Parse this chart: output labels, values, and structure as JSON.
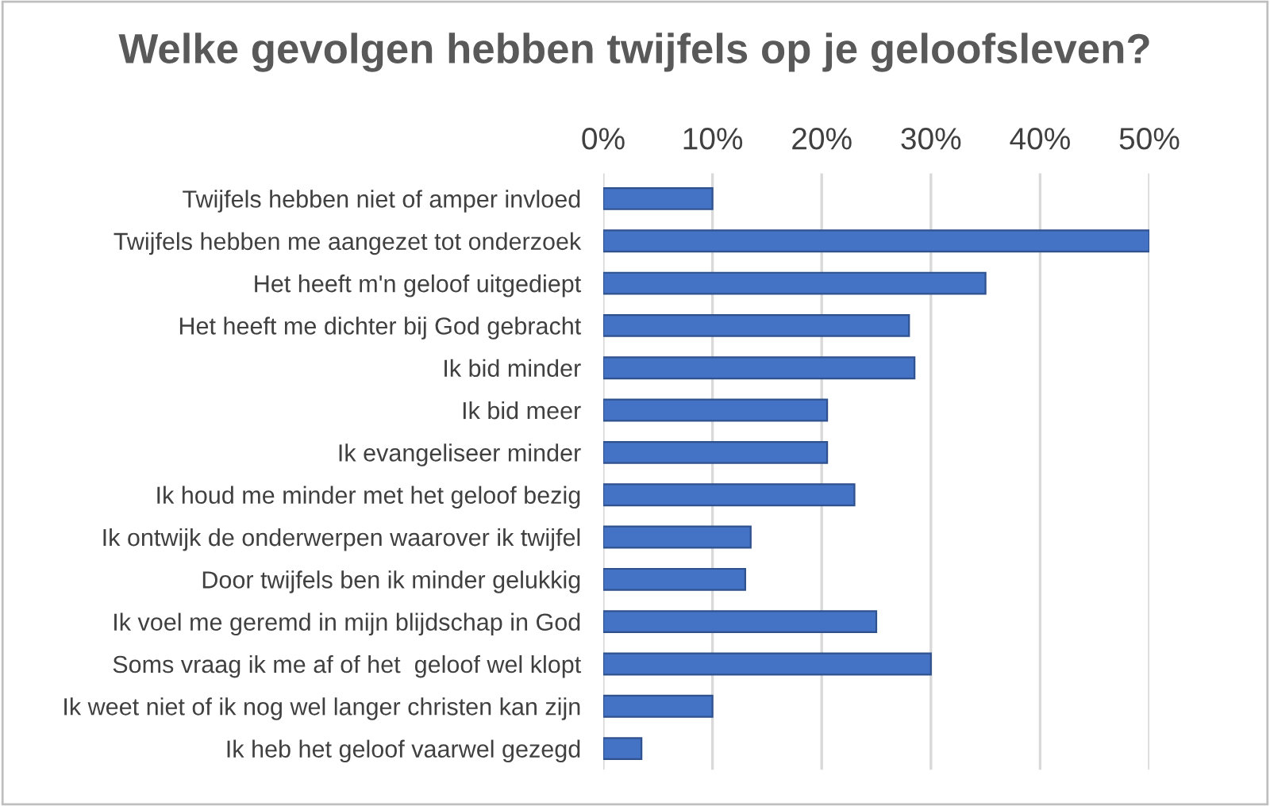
{
  "chart_data": {
    "type": "bar",
    "orientation": "horizontal",
    "title": "Welke gevolgen hebben twijfels op je geloofsleven?",
    "categories": [
      "Twijfels hebben niet of amper invloed",
      "Twijfels hebben me aangezet tot onderzoek",
      "Het heeft m'n geloof uitgediept",
      "Het heeft me dichter bij God gebracht",
      "Ik bid minder",
      "Ik bid meer",
      "Ik evangeliseer minder",
      "Ik houd me minder met het geloof bezig",
      "Ik ontwijk de onderwerpen waarover ik twijfel",
      "Door twijfels ben ik minder gelukkig",
      "Ik voel me geremd in mijn blijdschap in God",
      "Soms vraag ik me af of het  geloof wel klopt",
      "Ik weet niet of ik nog wel langer christen kan zijn",
      "Ik heb het geloof vaarwel gezegd"
    ],
    "values": [
      10,
      50,
      35,
      28,
      28.5,
      20.5,
      20.5,
      23,
      13.5,
      13,
      25,
      30,
      10,
      3.5
    ],
    "color": "#4472c4",
    "xlim": [
      0,
      50
    ],
    "xticks": [
      {
        "value": 0,
        "label": "0%"
      },
      {
        "value": 10,
        "label": "10%"
      },
      {
        "value": 20,
        "label": "20%"
      },
      {
        "value": 30,
        "label": "30%"
      },
      {
        "value": 40,
        "label": "40%"
      },
      {
        "value": 50,
        "label": "50%"
      }
    ],
    "grid": "x"
  }
}
